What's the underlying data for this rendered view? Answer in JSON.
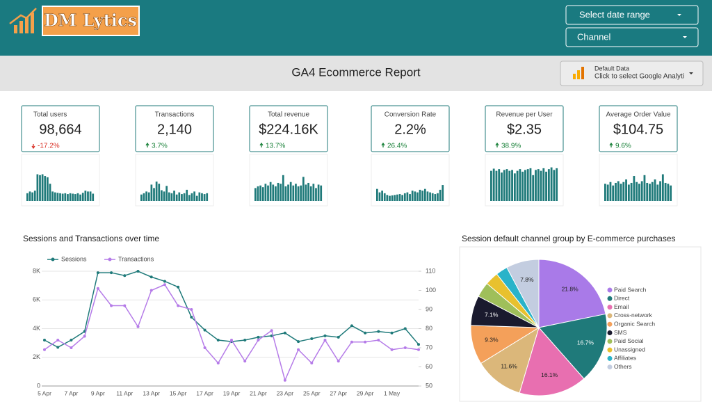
{
  "header": {
    "logo": "DM Lytics",
    "filters": [
      "Select date range",
      "Channel"
    ],
    "title": "GA4 Ecommerce Report",
    "source": {
      "label": "Default Data",
      "action": "Click to select Google Analyti"
    }
  },
  "kpis": [
    {
      "name": "Total users",
      "value": "98,664",
      "change": "-17.2%",
      "trend": [
        18,
        22,
        20,
        24,
        62,
        60,
        62,
        58,
        55,
        40,
        22,
        20,
        19,
        18,
        17,
        18,
        16,
        18,
        17,
        16,
        18,
        15,
        19,
        24,
        22,
        22,
        17
      ]
    },
    {
      "name": "Transactions",
      "value": "2,140",
      "change": "3.7%",
      "trend": [
        15,
        18,
        22,
        20,
        38,
        30,
        45,
        40,
        25,
        22,
        35,
        20,
        18,
        24,
        15,
        20,
        16,
        18,
        26,
        14,
        18,
        22,
        12,
        20,
        18,
        16,
        18
      ]
    },
    {
      "name": "Total revenue",
      "value": "$224.16K",
      "change": "13.7%",
      "trend": [
        30,
        34,
        36,
        32,
        40,
        36,
        44,
        38,
        34,
        42,
        40,
        60,
        34,
        38,
        44,
        36,
        40,
        34,
        36,
        56,
        38,
        42,
        34,
        40,
        30,
        38,
        36
      ]
    },
    {
      "name": "Conversion Rate",
      "value": "2.2%",
      "change": "26.4%",
      "trend": [
        28,
        20,
        24,
        18,
        14,
        12,
        13,
        14,
        15,
        16,
        14,
        18,
        20,
        16,
        24,
        22,
        20,
        26,
        24,
        28,
        22,
        20,
        18,
        16,
        18,
        26,
        37
      ]
    },
    {
      "name": "Revenue per User",
      "value": "$2.35",
      "change": "38.9%",
      "trend": [
        70,
        75,
        70,
        74,
        66,
        72,
        74,
        70,
        72,
        64,
        70,
        74,
        68,
        72,
        74,
        76,
        60,
        72,
        74,
        70,
        76,
        68,
        74,
        78,
        72,
        76
      ]
    },
    {
      "name": "Average Order Value",
      "value": "$104.75",
      "change": "9.6%",
      "trend": [
        40,
        38,
        44,
        36,
        42,
        46,
        40,
        44,
        50,
        38,
        42,
        58,
        44,
        40,
        46,
        60,
        42,
        40,
        44,
        50,
        38,
        46,
        62,
        42,
        40,
        36
      ]
    }
  ],
  "chart_data": [
    {
      "type": "line",
      "title": "Sessions and Transactions over time",
      "categories": [
        "5 Apr",
        null,
        "7 Apr",
        null,
        "9 Apr",
        null,
        "11 Apr",
        null,
        "13 Apr",
        null,
        "15 Apr",
        null,
        "17 Apr",
        null,
        "19 Apr",
        null,
        "21 Apr",
        null,
        "23 Apr",
        null,
        "25 Apr",
        null,
        "27 Apr",
        null,
        "29 Apr",
        null,
        "1 May",
        null,
        null
      ],
      "series": [
        {
          "name": "Sessions",
          "color": "#1f7a7a",
          "values": [
            3200,
            2700,
            3200,
            3800,
            7900,
            7900,
            7700,
            8000,
            7600,
            7300,
            6900,
            4800,
            3900,
            3200,
            3100,
            3200,
            3400,
            3500,
            3700,
            3100,
            3300,
            3500,
            3400,
            4200,
            3700,
            3800,
            3700,
            4000,
            2900
          ]
        },
        {
          "name": "Transactions",
          "color": "#b57be8",
          "axis": "y2",
          "values": [
            69,
            74,
            70,
            76,
            101,
            92,
            92,
            81,
            100,
            103,
            92,
            90,
            70,
            62,
            74,
            63,
            74,
            79,
            53,
            69,
            62,
            74,
            63,
            73,
            73,
            74,
            69,
            70,
            69
          ]
        }
      ],
      "ylim": [
        0,
        8000
      ],
      "yticks": [
        0,
        {
          "value": 2000,
          "label": "2K"
        },
        {
          "value": 4000,
          "label": "4K"
        },
        {
          "value": 6000,
          "label": "6K"
        },
        {
          "value": 8000,
          "label": "8K"
        }
      ],
      "y2lim": [
        50,
        110
      ],
      "y2ticks": [
        50,
        60,
        70,
        80,
        90,
        100,
        110
      ],
      "grid": true,
      "legend": "top-left"
    },
    {
      "type": "pie",
      "title": "Session default channel group by E-commerce purchases",
      "categories": [
        "Paid Search",
        "Direct",
        "Email",
        "Cross-network",
        "Organic Search",
        "SMS",
        "Paid Social",
        "Unassigned",
        "Affiliates",
        "Others"
      ],
      "values": [
        21.8,
        16.7,
        16.1,
        11.6,
        9.3,
        7.1,
        3.6,
        3.2,
        2.8,
        7.8
      ],
      "value_labels": [
        "21.8%",
        "16.7%",
        "16.1%",
        "11.6%",
        "9.3%",
        "7.1%",
        null,
        null,
        null,
        "7.8%"
      ],
      "colors": [
        "#a97ae8",
        "#1f7a7a",
        "#e86fb0",
        "#dbb77a",
        "#f4a05a",
        "#1a1a2e",
        "#9fbf5a",
        "#e8c12e",
        "#2ab3c9",
        "#c3cde0"
      ],
      "legend": "right"
    }
  ]
}
